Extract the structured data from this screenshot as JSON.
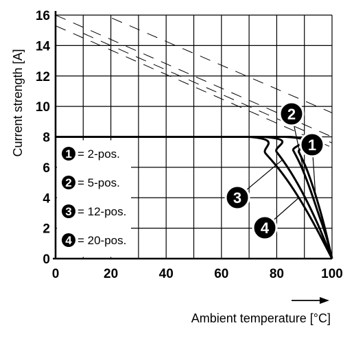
{
  "chart_data": {
    "type": "line",
    "xlabel": "Ambient temperature [°C]",
    "ylabel": "Current strength [A]",
    "xlim": [
      0,
      100
    ],
    "ylim": [
      0,
      16
    ],
    "x_ticks": [
      "0",
      "20",
      "40",
      "60",
      "80",
      "100"
    ],
    "y_ticks": [
      "0",
      "2",
      "4",
      "6",
      "8",
      "10",
      "12",
      "14",
      "16"
    ],
    "grid": true,
    "legend_position": "bottom-left",
    "legend": [
      {
        "marker": "1",
        "label": "= 2-pos."
      },
      {
        "marker": "2",
        "label": "= 5-pos."
      },
      {
        "marker": "3",
        "label": "= 12-pos."
      },
      {
        "marker": "4",
        "label": "= 20-pos."
      }
    ],
    "series": [
      {
        "marker": "1",
        "x": [
          0,
          85,
          88,
          91,
          94,
          97,
          100
        ],
        "y": [
          8,
          8,
          7.0,
          5.8,
          4.2,
          2.3,
          0
        ]
      },
      {
        "marker": "2",
        "x": [
          0,
          83,
          86,
          89,
          92,
          95,
          98,
          100
        ],
        "y": [
          8,
          8,
          7.1,
          6.0,
          4.6,
          3.0,
          1.4,
          0
        ]
      },
      {
        "marker": "3",
        "x": [
          0,
          75,
          80,
          85,
          90,
          95,
          100
        ],
        "y": [
          8,
          8,
          7.0,
          5.7,
          4.1,
          2.2,
          0
        ]
      },
      {
        "marker": "4",
        "x": [
          0,
          70,
          76,
          82,
          88,
          94,
          100
        ],
        "y": [
          8,
          8,
          6.9,
          5.6,
          4.0,
          2.1,
          0
        ]
      }
    ],
    "dashed_lines": [
      {
        "x": [
          0,
          100
        ],
        "y": [
          16,
          8
        ]
      },
      {
        "x": [
          0,
          100
        ],
        "y": [
          15.3,
          7.3
        ]
      },
      {
        "x": [
          14,
          110
        ],
        "y": [
          16.3,
          8.8
        ]
      },
      {
        "x": [
          10,
          110
        ],
        "y": [
          14.8,
          6.8
        ]
      }
    ]
  }
}
